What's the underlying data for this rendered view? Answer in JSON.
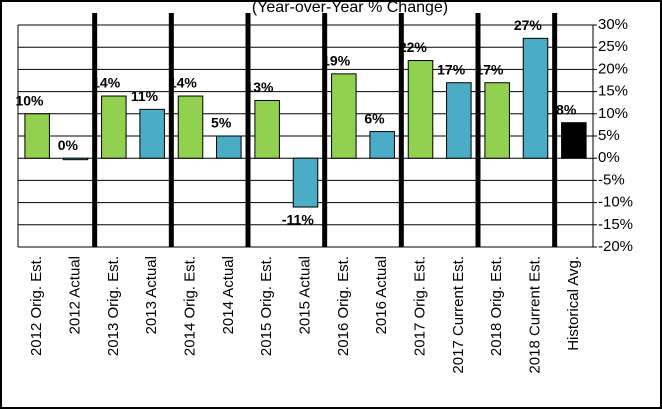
{
  "chart_data": {
    "type": "bar",
    "subtitle": "(Year-over-Year % Change)",
    "categories": [
      "2012 Orig. Est.",
      "2012 Actual",
      "2013 Orig. Est.",
      "2013 Actual",
      "2014 Orig. Est.",
      "2014 Actual",
      "2015 Orig. Est.",
      "2015 Actual",
      "2016 Orig. Est.",
      "2016 Actual",
      "2017 Orig. Est.",
      "2017 Current Est.",
      "2018 Orig. Est.",
      "2018 Current Est.",
      "Historical Avg."
    ],
    "values": [
      10,
      0,
      14,
      11,
      14,
      5,
      13,
      -11,
      19,
      6,
      22,
      17,
      17,
      27,
      8
    ],
    "value_labels": [
      "10%",
      "0%",
      "14%",
      "11%",
      "14%",
      "5%",
      "13%",
      "-11%",
      "19%",
      "6%",
      "22%",
      "17%",
      "17%",
      "27%",
      "8%"
    ],
    "colors": [
      "#92d050",
      "#4bacc6",
      "#92d050",
      "#4bacc6",
      "#92d050",
      "#4bacc6",
      "#92d050",
      "#4bacc6",
      "#92d050",
      "#4bacc6",
      "#92d050",
      "#4bacc6",
      "#92d050",
      "#4bacc6",
      "#000000"
    ],
    "negative_label_color": "#ff0000",
    "ylim": [
      -20,
      30
    ],
    "yticks": [
      {
        "value": 30,
        "label": "30%"
      },
      {
        "value": 25,
        "label": "25%"
      },
      {
        "value": 20,
        "label": "20%"
      },
      {
        "value": 15,
        "label": "15%"
      },
      {
        "value": 10,
        "label": "10%"
      },
      {
        "value": 5,
        "label": "5%"
      },
      {
        "value": 0,
        "label": "0%"
      },
      {
        "value": -5,
        "label": "-5%"
      },
      {
        "value": -10,
        "label": "-10%"
      },
      {
        "value": -15,
        "label": "-15%"
      },
      {
        "value": -20,
        "label": "-20%"
      }
    ],
    "grid": true
  }
}
